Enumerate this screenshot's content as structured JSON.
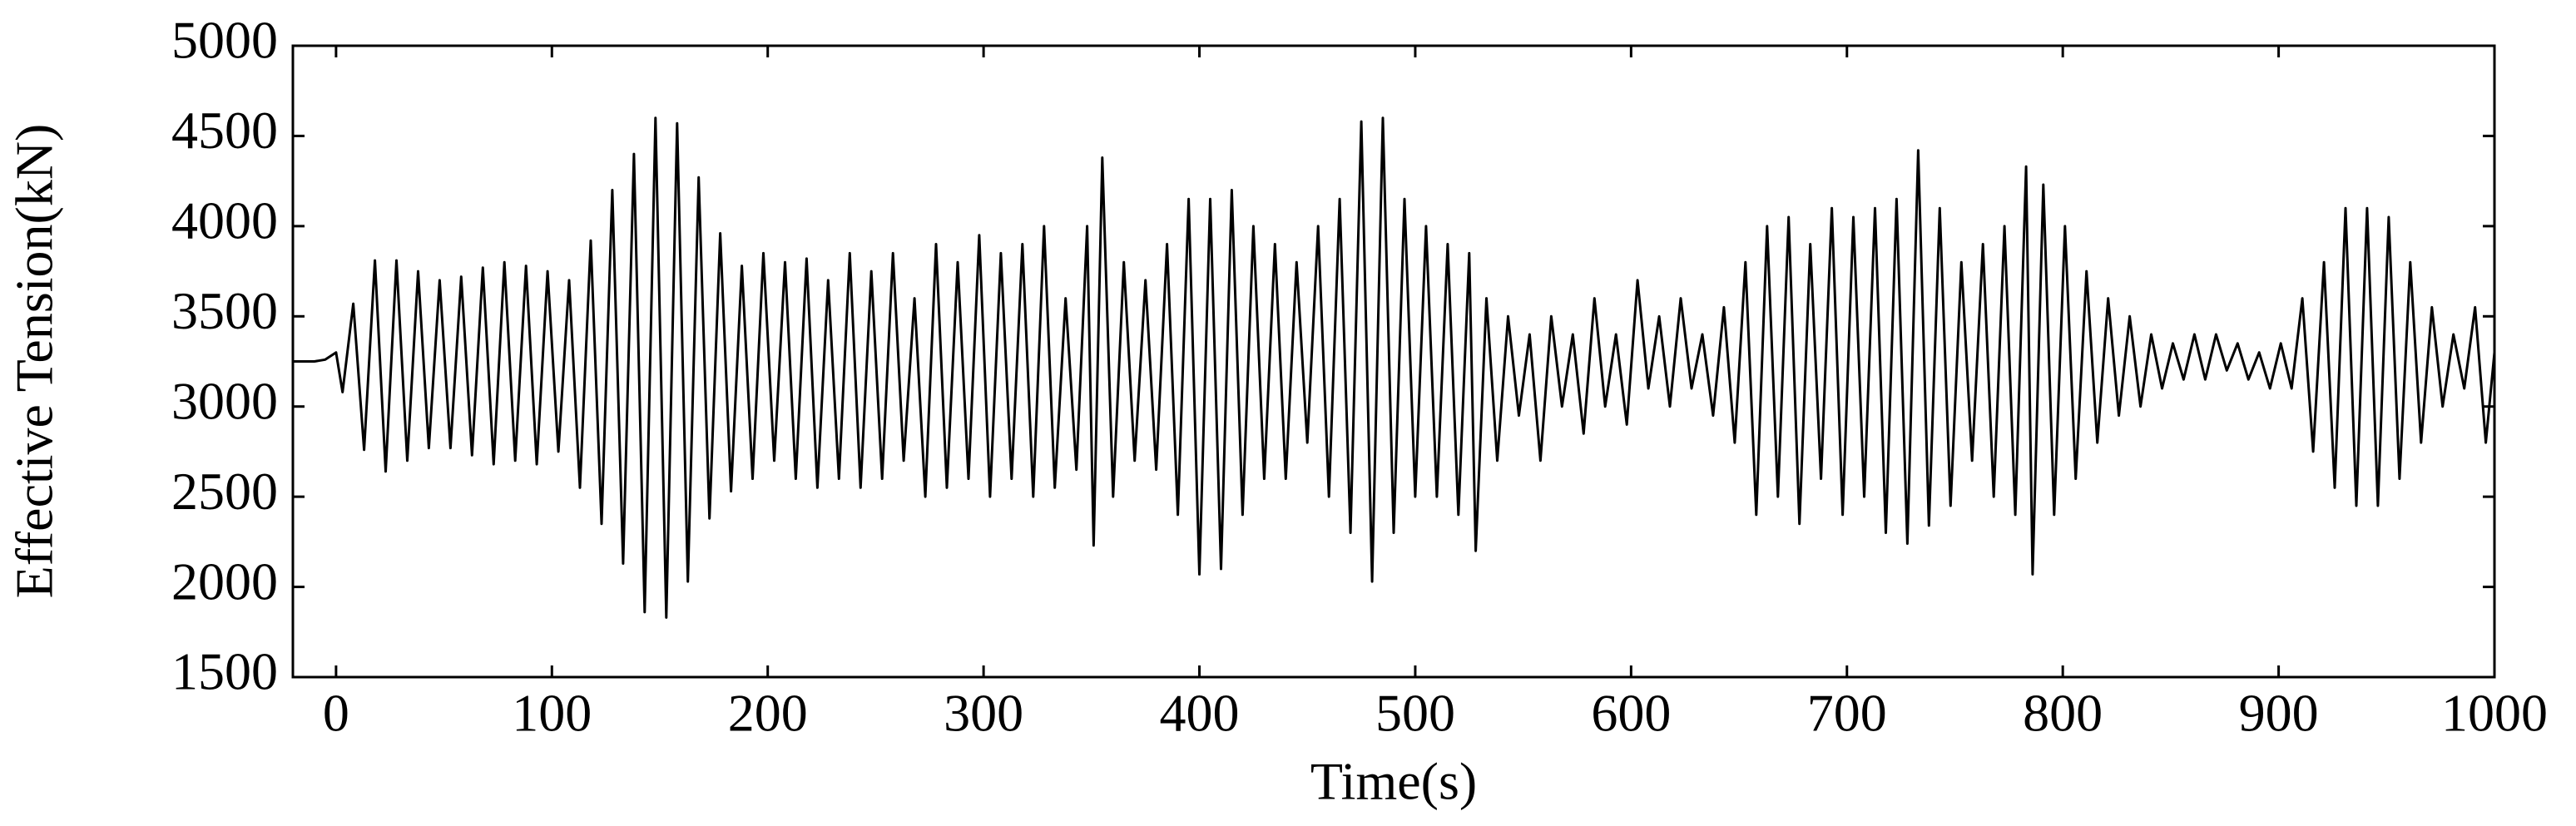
{
  "chart_data": {
    "type": "line",
    "xlabel": "Time(s)",
    "ylabel": "Effective Tension(kN)",
    "color": "#000000",
    "xlim": [
      -20,
      1000
    ],
    "xticks": [
      0,
      100,
      200,
      300,
      400,
      500,
      600,
      700,
      800,
      900,
      1000
    ],
    "ylim": [
      1500,
      5000
    ],
    "yticks": [
      1500,
      2000,
      2500,
      3000,
      3500,
      4000,
      4500,
      5000
    ],
    "x": [
      -20,
      -10,
      -5,
      0,
      3,
      8,
      13,
      18,
      23,
      28,
      33,
      38,
      43,
      48,
      53,
      58,
      63,
      68,
      73,
      78,
      83,
      88,
      93,
      98,
      103,
      108,
      113,
      118,
      123,
      128,
      133,
      138,
      143,
      148,
      153,
      158,
      163,
      168,
      173,
      178,
      183,
      188,
      193,
      198,
      203,
      208,
      213,
      218,
      223,
      228,
      233,
      238,
      243,
      248,
      253,
      258,
      263,
      268,
      273,
      278,
      283,
      288,
      293,
      298,
      303,
      308,
      313,
      318,
      323,
      328,
      333,
      338,
      343,
      348,
      351,
      355,
      360,
      365,
      370,
      375,
      380,
      385,
      390,
      395,
      400,
      405,
      410,
      415,
      420,
      425,
      430,
      435,
      440,
      445,
      450,
      455,
      460,
      465,
      470,
      475,
      480,
      485,
      490,
      495,
      500,
      505,
      510,
      515,
      520,
      525,
      528,
      533,
      538,
      543,
      548,
      553,
      558,
      563,
      568,
      573,
      578,
      583,
      588,
      593,
      598,
      603,
      608,
      613,
      618,
      623,
      628,
      633,
      638,
      643,
      648,
      653,
      658,
      663,
      668,
      673,
      678,
      683,
      688,
      693,
      698,
      703,
      708,
      713,
      718,
      723,
      728,
      733,
      738,
      743,
      748,
      753,
      758,
      763,
      768,
      773,
      778,
      783,
      786,
      791,
      796,
      801,
      806,
      811,
      816,
      821,
      826,
      831,
      836,
      841,
      846,
      851,
      856,
      861,
      866,
      871,
      876,
      881,
      886,
      891,
      896,
      901,
      906,
      911,
      916,
      921,
      926,
      931,
      936,
      941,
      946,
      951,
      956,
      961,
      966,
      971,
      976,
      981,
      986,
      991,
      996,
      1000
    ],
    "values": [
      3250,
      3250,
      3260,
      3300,
      3080,
      3570,
      2760,
      3810,
      2640,
      3810,
      2700,
      3750,
      2770,
      3700,
      2770,
      3720,
      2730,
      3770,
      2680,
      3800,
      2700,
      3780,
      2680,
      3750,
      2750,
      3700,
      2550,
      3920,
      2350,
      4200,
      2130,
      4400,
      1860,
      4600,
      1830,
      4570,
      2030,
      4270,
      2380,
      3960,
      2530,
      3780,
      2600,
      3850,
      2700,
      3800,
      2600,
      3820,
      2550,
      3700,
      2600,
      3850,
      2550,
      3750,
      2600,
      3850,
      2700,
      3600,
      2500,
      3900,
      2550,
      3800,
      2600,
      3950,
      2500,
      3850,
      2600,
      3900,
      2500,
      4000,
      2550,
      3600,
      2650,
      4000,
      2230,
      4380,
      2500,
      3800,
      2700,
      3700,
      2650,
      3900,
      2400,
      4150,
      2070,
      4150,
      2100,
      4200,
      2400,
      4000,
      2600,
      3900,
      2600,
      3800,
      2800,
      4000,
      2500,
      4150,
      2300,
      4580,
      2030,
      4600,
      2300,
      4150,
      2500,
      4000,
      2500,
      3900,
      2400,
      3850,
      2200,
      3600,
      2700,
      3500,
      2950,
      3400,
      2700,
      3500,
      3000,
      3400,
      2850,
      3600,
      3000,
      3400,
      2900,
      3700,
      3100,
      3500,
      3000,
      3600,
      3100,
      3400,
      2950,
      3550,
      2800,
      3800,
      2400,
      4000,
      2500,
      4050,
      2350,
      3900,
      2600,
      4100,
      2400,
      4050,
      2500,
      4100,
      2300,
      4150,
      2240,
      4420,
      2340,
      4100,
      2450,
      3800,
      2700,
      3900,
      2500,
      4000,
      2400,
      4330,
      2070,
      4230,
      2400,
      4000,
      2600,
      3750,
      2800,
      3600,
      2950,
      3500,
      3000,
      3400,
      3100,
      3350,
      3150,
      3400,
      3150,
      3400,
      3200,
      3350,
      3150,
      3300,
      3100,
      3350,
      3100,
      3600,
      2750,
      3800,
      2550,
      4100,
      2450,
      4100,
      2450,
      4050,
      2600,
      3800,
      2800,
      3550,
      3000,
      3400,
      3100,
      3550,
      2800,
      3300
    ]
  }
}
